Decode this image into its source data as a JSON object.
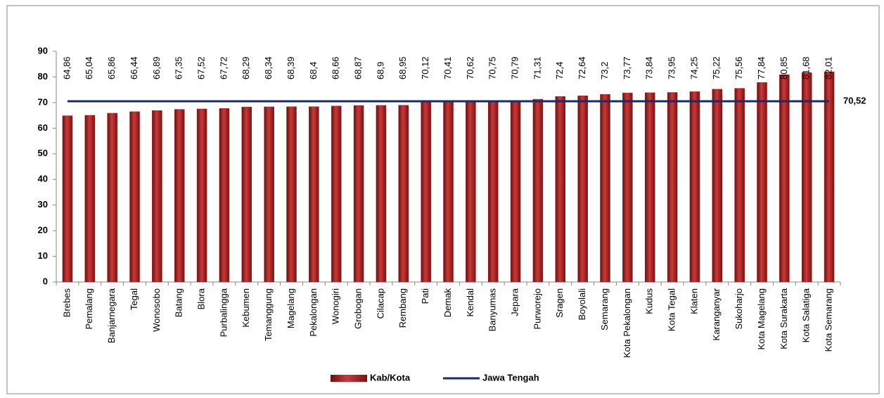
{
  "chart_data": {
    "type": "bar",
    "categories": [
      "Brebes",
      "Pemalang",
      "Banjarnegara",
      "Tegal",
      "Wonosobo",
      "Batang",
      "Blora",
      "Purbalingga",
      "Kebumen",
      "Temanggung",
      "Magelang",
      "Pekalongan",
      "Wonogiri",
      "Grobogan",
      "Cilacap",
      "Rembang",
      "Pati",
      "Demak",
      "Kendal",
      "Banyumas",
      "Jepara",
      "Purworejo",
      "Sragen",
      "Boyolali",
      "Semarang",
      "Kota Pekalongan",
      "Kudus",
      "Kota Tegal",
      "Klaten",
      "Karanganyar",
      "Sukoharjo",
      "Kota Magelang",
      "Kota Surakarta",
      "Kota Salatiga",
      "Kota Semarang"
    ],
    "series": [
      {
        "name": "Kab/Kota",
        "color": "#9b1c1c",
        "values": [
          64.86,
          65.04,
          65.86,
          66.44,
          66.89,
          67.35,
          67.52,
          67.72,
          68.29,
          68.34,
          68.39,
          68.4,
          68.66,
          68.87,
          68.9,
          68.95,
          70.12,
          70.41,
          70.62,
          70.75,
          70.79,
          71.31,
          72.4,
          72.64,
          73.2,
          73.77,
          73.84,
          73.95,
          74.25,
          75.22,
          75.56,
          77.84,
          80.85,
          81.68,
          82.01
        ],
        "value_labels": [
          "64,86",
          "65,04",
          "65,86",
          "66,44",
          "66,89",
          "67,35",
          "67,52",
          "67,72",
          "68,29",
          "68,34",
          "68,39",
          "68,4",
          "68,66",
          "68,87",
          "68,9",
          "68,95",
          "70,12",
          "70,41",
          "70,62",
          "70,75",
          "70,79",
          "71,31",
          "72,4",
          "72,64",
          "73,2",
          "73,77",
          "73,84",
          "73,95",
          "74,25",
          "75,22",
          "75,56",
          "77,84",
          "80,85",
          "81,68",
          "82,01"
        ]
      }
    ],
    "reference_line": {
      "name": "Jawa Tengah",
      "color": "#1a2a6c",
      "value": 70.52,
      "value_label": "70,52"
    },
    "ylim": [
      0,
      90
    ],
    "yticks": [
      0,
      10,
      20,
      30,
      40,
      50,
      60,
      70,
      80,
      90
    ]
  }
}
